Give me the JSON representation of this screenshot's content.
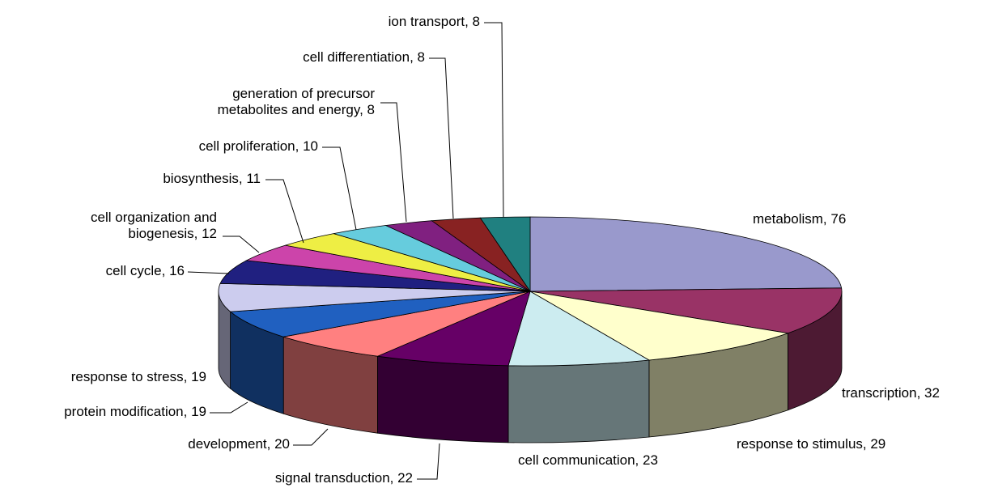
{
  "chart_data": {
    "type": "pie3d",
    "labels": [
      "metabolism, 76",
      "transcription, 32",
      "response to stimulus, 29",
      "cell communication, 23",
      "signal transduction, 22",
      "development, 20",
      "protein modification, 19",
      "response to stress, 19",
      "cell cycle, 16",
      "cell organization and\nbiogenesis, 12",
      "biosynthesis, 11",
      "cell proliferation, 10",
      "generation of precursor\nmetabolites and energy, 8",
      "cell differentiation, 8",
      "ion transport, 8"
    ],
    "values": [
      76,
      32,
      29,
      23,
      22,
      20,
      19,
      19,
      16,
      12,
      11,
      10,
      8,
      8,
      8
    ],
    "colors": [
      "#9999cc",
      "#993366",
      "#ffffcc",
      "#ccecf0",
      "#660066",
      "#ff8080",
      "#2060c0",
      "#ccccee",
      "#202080",
      "#cc44aa",
      "#eeee44",
      "#66ccdd",
      "#802080",
      "#882222",
      "#208080"
    ]
  }
}
